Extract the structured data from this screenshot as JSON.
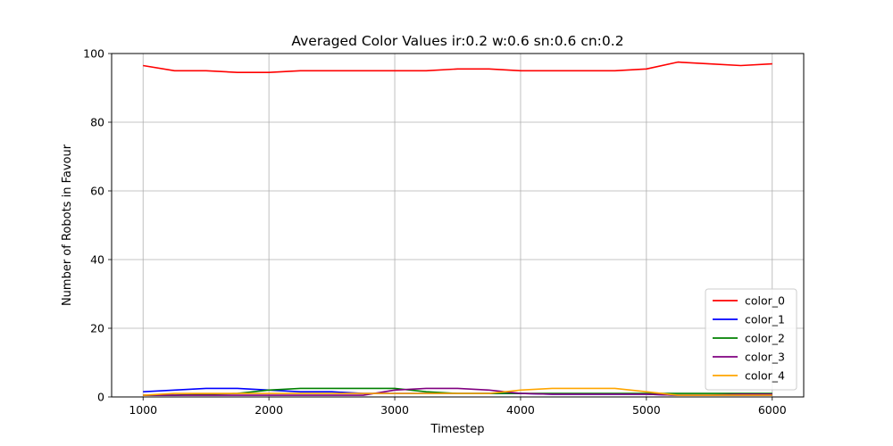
{
  "chart_data": {
    "type": "line",
    "title": "Averaged Color Values ir:0.2 w:0.6 sn:0.6 cn:0.2",
    "xlabel": "Timestep",
    "ylabel": "Number of Robots in Favour",
    "xlim": [
      750,
      6250
    ],
    "ylim": [
      0,
      100
    ],
    "xticks": [
      1000,
      2000,
      3000,
      4000,
      5000,
      6000
    ],
    "yticks": [
      0,
      20,
      40,
      60,
      80,
      100
    ],
    "grid": true,
    "legend_position": "lower-right",
    "x": [
      1000,
      1250,
      1500,
      1750,
      2000,
      2250,
      2500,
      2750,
      3000,
      3250,
      3500,
      3750,
      4000,
      4250,
      4500,
      4750,
      5000,
      5250,
      5500,
      5750,
      6000
    ],
    "series": [
      {
        "name": "color_0",
        "color": "#ff0000",
        "values": [
          96.5,
          95.0,
          95.0,
          94.5,
          94.5,
          95.0,
          95.0,
          95.0,
          95.0,
          95.0,
          95.5,
          95.5,
          95.0,
          95.0,
          95.0,
          95.0,
          95.5,
          97.5,
          97.0,
          96.5,
          97.0
        ]
      },
      {
        "name": "color_1",
        "color": "#0000ff",
        "values": [
          1.5,
          2.0,
          2.5,
          2.5,
          2.0,
          1.5,
          1.5,
          1.0,
          1.0,
          1.0,
          1.0,
          1.0,
          1.0,
          0.8,
          0.8,
          0.8,
          0.8,
          0.5,
          0.5,
          0.5,
          0.5
        ]
      },
      {
        "name": "color_2",
        "color": "#008000",
        "values": [
          0.5,
          0.5,
          0.8,
          1.0,
          2.0,
          2.5,
          2.5,
          2.5,
          2.5,
          1.5,
          1.0,
          1.0,
          1.0,
          1.0,
          1.0,
          1.0,
          1.0,
          1.0,
          1.0,
          1.0,
          1.0
        ]
      },
      {
        "name": "color_3",
        "color": "#800080",
        "values": [
          0.5,
          0.5,
          0.5,
          0.5,
          0.5,
          0.5,
          0.5,
          0.5,
          2.0,
          2.5,
          2.5,
          2.0,
          1.0,
          0.8,
          0.8,
          0.8,
          0.8,
          0.5,
          0.5,
          0.8,
          0.8
        ]
      },
      {
        "name": "color_4",
        "color": "#ffa500",
        "values": [
          0.5,
          1.0,
          1.0,
          1.0,
          1.0,
          1.0,
          1.0,
          1.0,
          1.0,
          1.0,
          1.0,
          1.0,
          2.0,
          2.5,
          2.5,
          2.5,
          1.5,
          0.5,
          0.5,
          0.5,
          0.5
        ]
      }
    ]
  }
}
